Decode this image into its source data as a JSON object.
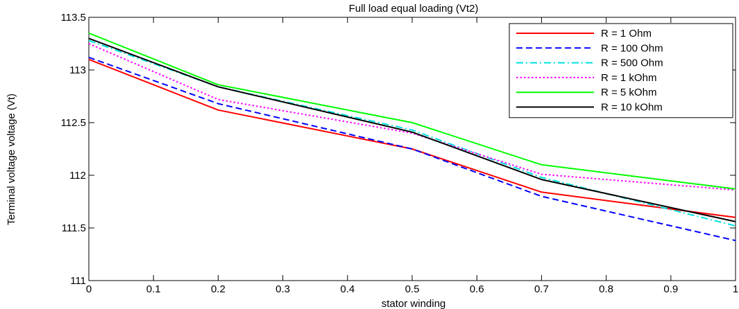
{
  "chart_data": {
    "type": "line",
    "title": "Full load equal loading (Vt2)",
    "xlabel": "stator winding",
    "ylabel": "Terminal voltage voltage (Vt)",
    "xlim": [
      0,
      1
    ],
    "ylim": [
      111,
      113.5
    ],
    "x_ticks": [
      "0",
      "0.1",
      "0.2",
      "0.3",
      "0.4",
      "0.5",
      "0.6",
      "0.7",
      "0.8",
      "0.9",
      "1"
    ],
    "y_ticks": [
      "111",
      "111.5",
      "112",
      "112.5",
      "113",
      "113.5"
    ],
    "grid": false,
    "legend_position": "top-right",
    "x": [
      0,
      0.2,
      0.5,
      0.7,
      1
    ],
    "series": [
      {
        "name": "R = 1 Ohm",
        "color": "#ff0000",
        "dash": "solid",
        "values": [
          113.1,
          112.62,
          112.25,
          111.84,
          111.6
        ]
      },
      {
        "name": "R = 100 Ohm",
        "color": "#0000ff",
        "dash": "dashed",
        "values": [
          113.12,
          112.68,
          112.25,
          111.8,
          111.38
        ]
      },
      {
        "name": "R = 500 Ohm",
        "color": "#00e0e0",
        "dash": "dashdot",
        "values": [
          113.28,
          112.84,
          112.43,
          111.98,
          111.52
        ]
      },
      {
        "name": "R = 1 kOhm",
        "color": "#ff00ff",
        "dash": "dotted",
        "values": [
          113.25,
          112.72,
          112.4,
          112.01,
          111.86
        ]
      },
      {
        "name": "R = 5 kOhm",
        "color": "#00ff00",
        "dash": "solid",
        "values": [
          113.35,
          112.86,
          112.5,
          112.1,
          111.87
        ]
      },
      {
        "name": "R = 10 kOhm",
        "color": "#000000",
        "dash": "solid",
        "values": [
          113.3,
          112.84,
          112.41,
          111.96,
          111.56
        ]
      }
    ]
  }
}
